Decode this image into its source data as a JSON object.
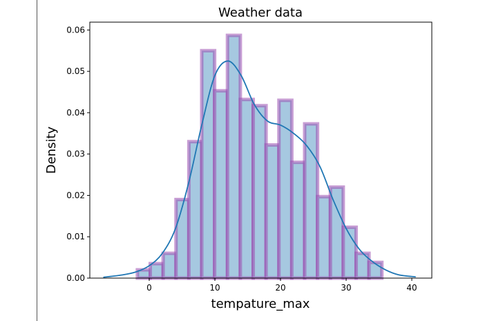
{
  "chart_data": {
    "type": "bar",
    "title": "Weather data",
    "xlabel": "tempature_max",
    "ylabel": "Density",
    "xlim": [
      -9.05,
      43.05
    ],
    "ylim": [
      0,
      0.0619
    ],
    "xticks": [
      0,
      10,
      20,
      30,
      40
    ],
    "yticks": [
      0.0,
      0.01,
      0.02,
      0.03,
      0.04,
      0.05,
      0.06
    ],
    "ytick_labels": [
      "0.00",
      "0.01",
      "0.02",
      "0.03",
      "0.04",
      "0.05",
      "0.06"
    ],
    "grid": false,
    "bins": {
      "start": -1.8,
      "width": 1.96
    },
    "values": [
      0.002,
      0.0035,
      0.006,
      0.019,
      0.033,
      0.055,
      0.0453,
      0.0587,
      0.0432,
      0.0417,
      0.0322,
      0.043,
      0.028,
      0.0373,
      0.0197,
      0.022,
      0.0123,
      0.006,
      0.0038
    ],
    "kde": {
      "x": [
        -7,
        -4,
        -2,
        0,
        2,
        4,
        6,
        8,
        10,
        12,
        14,
        16,
        18,
        20,
        22,
        24,
        26,
        28,
        30,
        32,
        34,
        36,
        38,
        40.6
      ],
      "y": [
        0.0002,
        0.0008,
        0.0015,
        0.003,
        0.006,
        0.012,
        0.023,
        0.037,
        0.049,
        0.0525,
        0.049,
        0.042,
        0.038,
        0.037,
        0.035,
        0.032,
        0.027,
        0.019,
        0.012,
        0.007,
        0.004,
        0.002,
        0.0008,
        0.0003
      ]
    },
    "colors": {
      "bar_fill": "#a6c8e0",
      "bar_edge": "#9b4fb0",
      "kde": "#1f77b4"
    }
  }
}
